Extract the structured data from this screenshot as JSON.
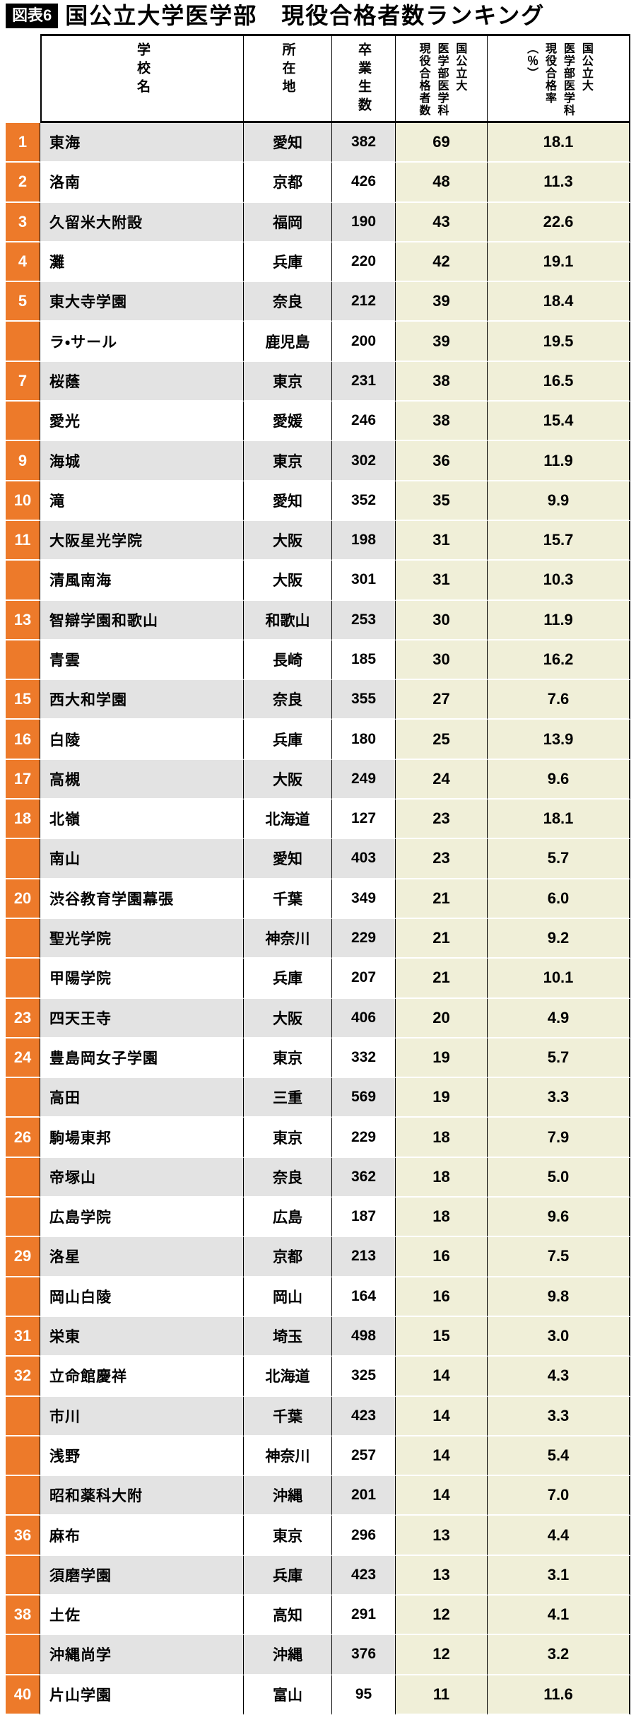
{
  "title": {
    "badge": "図表6",
    "text": "国公立大学医学部　現役合格者数ランキング"
  },
  "table": {
    "headers": {
      "school": "学校名",
      "location": "所在地",
      "graduates": "卒業生数",
      "passers": "国公立大\n医学部医学科\n現役合格者数",
      "rate": "国公立大\n医学部医学科\n現役合格率\n（％）"
    },
    "rows": [
      {
        "rank": "1",
        "school": "東海",
        "location": "愛知",
        "graduates": "382",
        "passers": "69",
        "rate": "18.1"
      },
      {
        "rank": "2",
        "school": "洛南",
        "location": "京都",
        "graduates": "426",
        "passers": "48",
        "rate": "11.3"
      },
      {
        "rank": "3",
        "school": "久留米大附設",
        "location": "福岡",
        "graduates": "190",
        "passers": "43",
        "rate": "22.6"
      },
      {
        "rank": "4",
        "school": "灘",
        "location": "兵庫",
        "graduates": "220",
        "passers": "42",
        "rate": "19.1"
      },
      {
        "rank": "5",
        "school": "東大寺学園",
        "location": "奈良",
        "graduates": "212",
        "passers": "39",
        "rate": "18.4"
      },
      {
        "rank": "",
        "school": "ラ・サール",
        "location": "鹿児島",
        "graduates": "200",
        "passers": "39",
        "rate": "19.5"
      },
      {
        "rank": "7",
        "school": "桜蔭",
        "location": "東京",
        "graduates": "231",
        "passers": "38",
        "rate": "16.5"
      },
      {
        "rank": "",
        "school": "愛光",
        "location": "愛媛",
        "graduates": "246",
        "passers": "38",
        "rate": "15.4"
      },
      {
        "rank": "9",
        "school": "海城",
        "location": "東京",
        "graduates": "302",
        "passers": "36",
        "rate": "11.9"
      },
      {
        "rank": "10",
        "school": "滝",
        "location": "愛知",
        "graduates": "352",
        "passers": "35",
        "rate": "9.9"
      },
      {
        "rank": "11",
        "school": "大阪星光学院",
        "location": "大阪",
        "graduates": "198",
        "passers": "31",
        "rate": "15.7"
      },
      {
        "rank": "",
        "school": "清風南海",
        "location": "大阪",
        "graduates": "301",
        "passers": "31",
        "rate": "10.3"
      },
      {
        "rank": "13",
        "school": "智辯学園和歌山",
        "location": "和歌山",
        "graduates": "253",
        "passers": "30",
        "rate": "11.9"
      },
      {
        "rank": "",
        "school": "青雲",
        "location": "長崎",
        "graduates": "185",
        "passers": "30",
        "rate": "16.2"
      },
      {
        "rank": "15",
        "school": "西大和学園",
        "location": "奈良",
        "graduates": "355",
        "passers": "27",
        "rate": "7.6"
      },
      {
        "rank": "16",
        "school": "白陵",
        "location": "兵庫",
        "graduates": "180",
        "passers": "25",
        "rate": "13.9"
      },
      {
        "rank": "17",
        "school": "高槻",
        "location": "大阪",
        "graduates": "249",
        "passers": "24",
        "rate": "9.6"
      },
      {
        "rank": "18",
        "school": "北嶺",
        "location": "北海道",
        "graduates": "127",
        "passers": "23",
        "rate": "18.1"
      },
      {
        "rank": "",
        "school": "南山",
        "location": "愛知",
        "graduates": "403",
        "passers": "23",
        "rate": "5.7"
      },
      {
        "rank": "20",
        "school": "渋谷教育学園幕張",
        "location": "千葉",
        "graduates": "349",
        "passers": "21",
        "rate": "6.0"
      },
      {
        "rank": "",
        "school": "聖光学院",
        "location": "神奈川",
        "graduates": "229",
        "passers": "21",
        "rate": "9.2"
      },
      {
        "rank": "",
        "school": "甲陽学院",
        "location": "兵庫",
        "graduates": "207",
        "passers": "21",
        "rate": "10.1"
      },
      {
        "rank": "23",
        "school": "四天王寺",
        "location": "大阪",
        "graduates": "406",
        "passers": "20",
        "rate": "4.9"
      },
      {
        "rank": "24",
        "school": "豊島岡女子学園",
        "location": "東京",
        "graduates": "332",
        "passers": "19",
        "rate": "5.7"
      },
      {
        "rank": "",
        "school": "高田",
        "location": "三重",
        "graduates": "569",
        "passers": "19",
        "rate": "3.3"
      },
      {
        "rank": "26",
        "school": "駒場東邦",
        "location": "東京",
        "graduates": "229",
        "passers": "18",
        "rate": "7.9"
      },
      {
        "rank": "",
        "school": "帝塚山",
        "location": "奈良",
        "graduates": "362",
        "passers": "18",
        "rate": "5.0"
      },
      {
        "rank": "",
        "school": "広島学院",
        "location": "広島",
        "graduates": "187",
        "passers": "18",
        "rate": "9.6"
      },
      {
        "rank": "29",
        "school": "洛星",
        "location": "京都",
        "graduates": "213",
        "passers": "16",
        "rate": "7.5"
      },
      {
        "rank": "",
        "school": "岡山白陵",
        "location": "岡山",
        "graduates": "164",
        "passers": "16",
        "rate": "9.8"
      },
      {
        "rank": "31",
        "school": "栄東",
        "location": "埼玉",
        "graduates": "498",
        "passers": "15",
        "rate": "3.0"
      },
      {
        "rank": "32",
        "school": "立命館慶祥",
        "location": "北海道",
        "graduates": "325",
        "passers": "14",
        "rate": "4.3"
      },
      {
        "rank": "",
        "school": "市川",
        "location": "千葉",
        "graduates": "423",
        "passers": "14",
        "rate": "3.3"
      },
      {
        "rank": "",
        "school": "浅野",
        "location": "神奈川",
        "graduates": "257",
        "passers": "14",
        "rate": "5.4"
      },
      {
        "rank": "",
        "school": "昭和薬科大附",
        "location": "沖縄",
        "graduates": "201",
        "passers": "14",
        "rate": "7.0"
      },
      {
        "rank": "36",
        "school": "麻布",
        "location": "東京",
        "graduates": "296",
        "passers": "13",
        "rate": "4.4"
      },
      {
        "rank": "",
        "school": "須磨学園",
        "location": "兵庫",
        "graduates": "423",
        "passers": "13",
        "rate": "3.1"
      },
      {
        "rank": "38",
        "school": "土佐",
        "location": "高知",
        "graduates": "291",
        "passers": "12",
        "rate": "4.1"
      },
      {
        "rank": "",
        "school": "沖縄尚学",
        "location": "沖縄",
        "graduates": "376",
        "passers": "12",
        "rate": "3.2"
      },
      {
        "rank": "40",
        "school": "片山学園",
        "location": "富山",
        "graduates": "95",
        "passers": "11",
        "rate": "11.6"
      }
    ]
  },
  "colors": {
    "accent_orange": "#ED7A2A",
    "row_gray": "#E3E3E3",
    "highlight_yellow": "#F0EFD8",
    "title_bg": "#000000",
    "table_line": "#000000"
  }
}
